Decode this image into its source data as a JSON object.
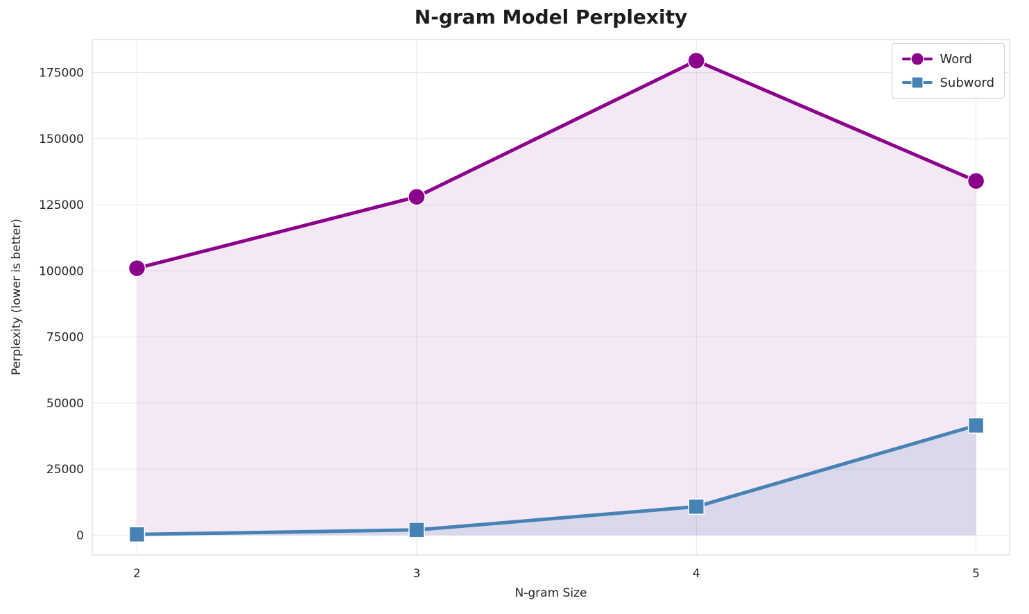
{
  "chart_data": {
    "type": "line",
    "title": "N-gram Model Perplexity",
    "xlabel": "N-gram Size",
    "ylabel": "Perplexity (lower is better)",
    "x": [
      2,
      3,
      4,
      5
    ],
    "xticks": [
      2,
      3,
      4,
      5
    ],
    "yticks": [
      0,
      25000,
      50000,
      75000,
      100000,
      125000,
      150000,
      175000
    ],
    "xlim": [
      1.84,
      5.12
    ],
    "ylim": [
      -7500,
      187500
    ],
    "grid": true,
    "grid_color": "#e7e7f0",
    "frame_color": "#d8d8e0",
    "legend_position": "upper right",
    "series": [
      {
        "name": "Word",
        "values": [
          101000,
          128000,
          179500,
          134000
        ],
        "color": "#8B008B",
        "marker": "circle",
        "fill": true,
        "fill_opacity": 0.09
      },
      {
        "name": "Subword",
        "values": [
          300,
          2000,
          10800,
          41500
        ],
        "color": "#4682B4",
        "marker": "square",
        "fill": true,
        "fill_opacity": 0.15
      }
    ]
  }
}
